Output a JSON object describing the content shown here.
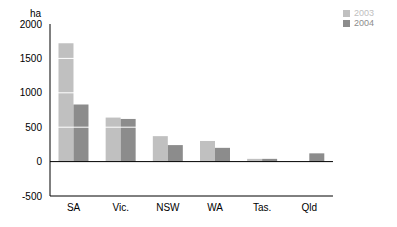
{
  "chart_data": {
    "type": "bar",
    "y_label": "ha",
    "categories": [
      "SA",
      "Vic.",
      "NSW",
      "WA",
      "Tas.",
      "Qld"
    ],
    "series": [
      {
        "name": "2003",
        "color": "#c0c0c0",
        "values": [
          1720,
          640,
          370,
          300,
          40,
          0
        ]
      },
      {
        "name": "2004",
        "color": "#8c8c8c",
        "values": [
          830,
          620,
          240,
          200,
          40,
          120
        ]
      }
    ],
    "ylim": [
      -500,
      2000
    ],
    "yticks": [
      -500,
      0,
      500,
      1000,
      1500,
      2000
    ],
    "grid": true,
    "legend": "upper right"
  }
}
